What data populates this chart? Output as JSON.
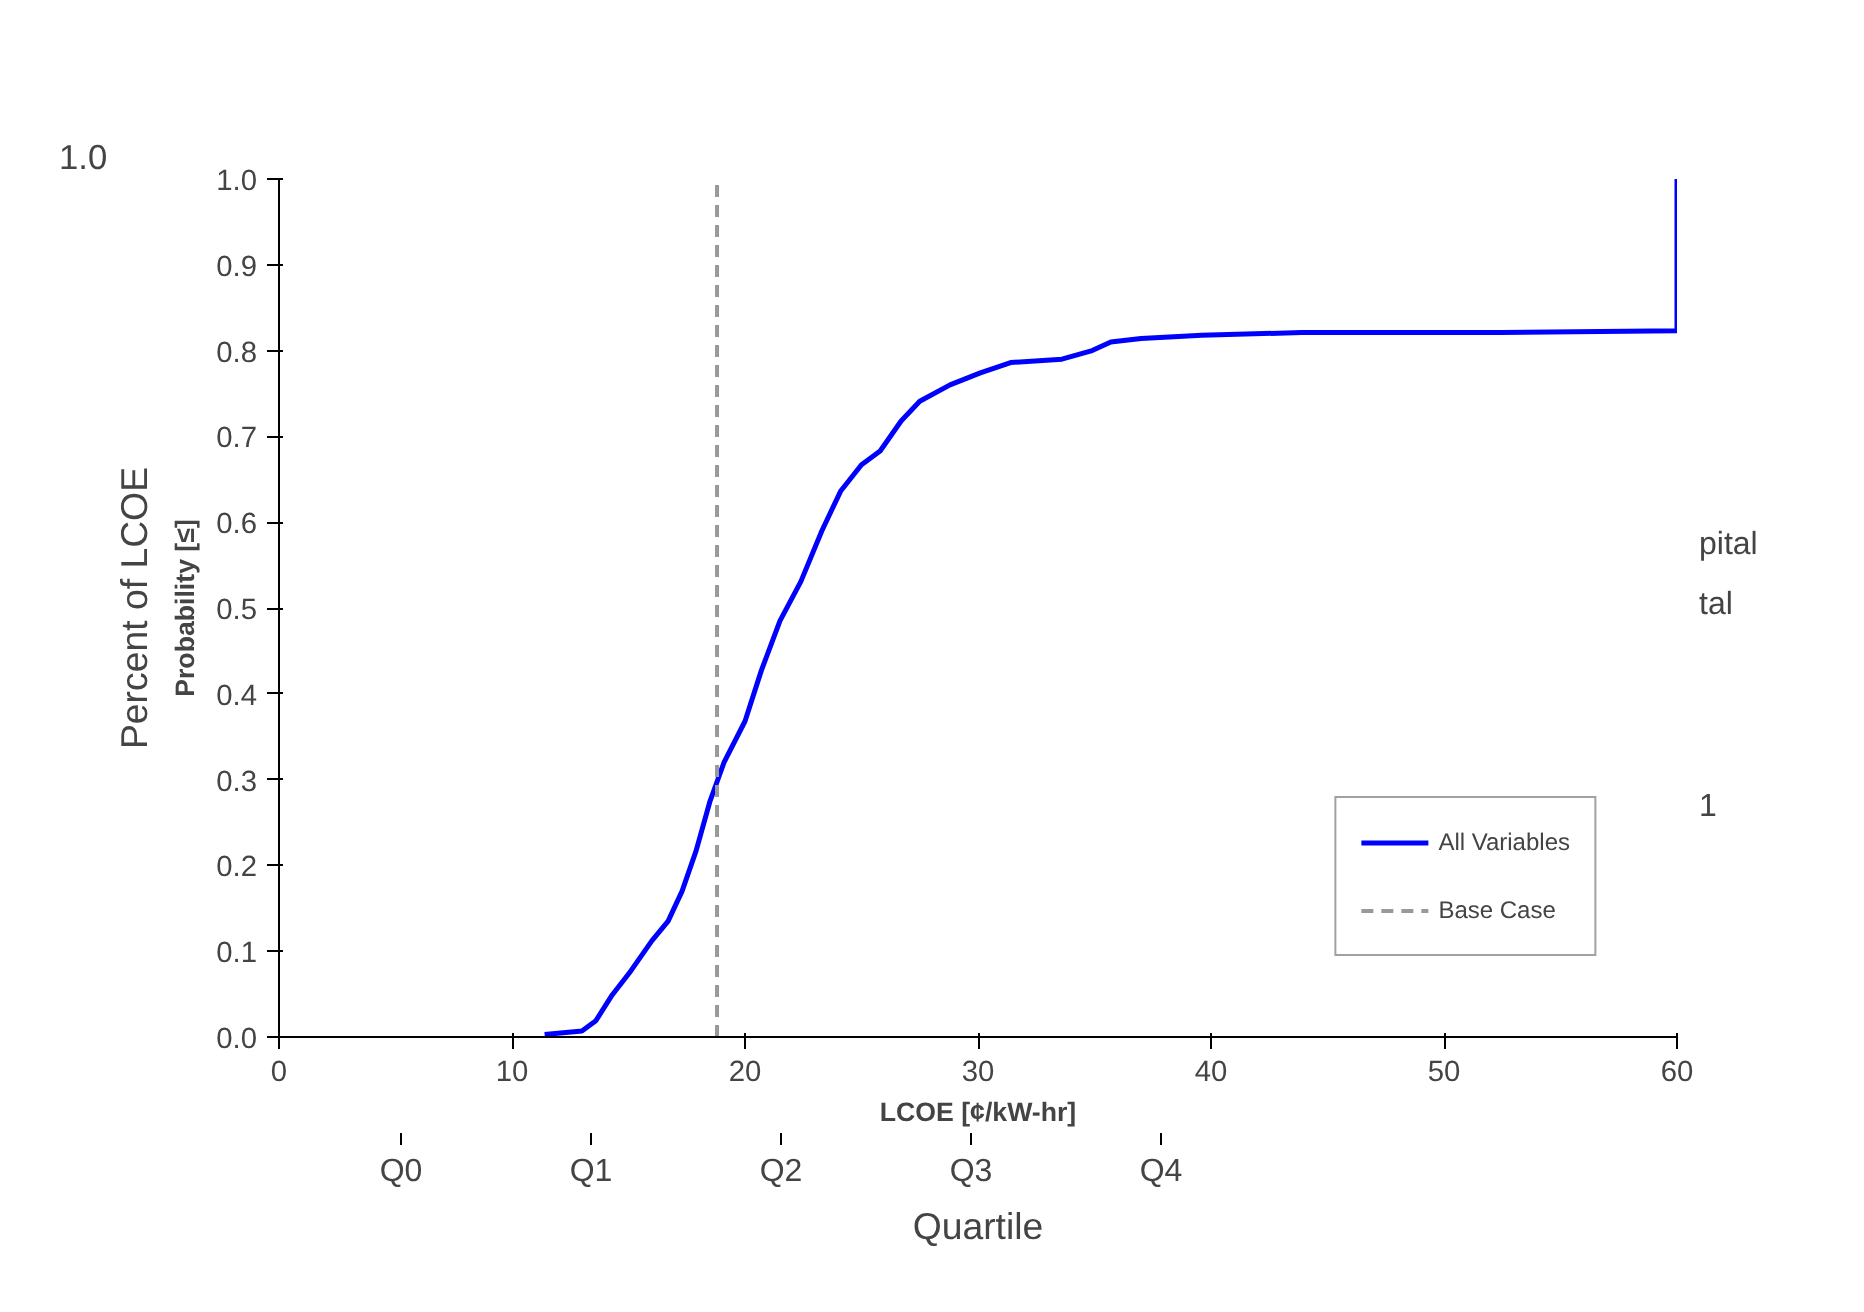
{
  "chart_data": {
    "type": "line",
    "xlabel": "LCOE [¢/kW-hr]",
    "ylabel": "Probability [≤]",
    "xlim": [
      0,
      60
    ],
    "xticks": [
      0,
      10,
      20,
      30,
      40,
      50,
      60
    ],
    "ylim": [
      0,
      1
    ],
    "yticks": [
      {
        "value": 0,
        "label": "0.0"
      },
      {
        "value": 0.1,
        "label": "0.1"
      },
      {
        "value": 0.2,
        "label": "0.2"
      },
      {
        "value": 0.3,
        "label": "0.3"
      },
      {
        "value": 0.4,
        "label": "0.4"
      },
      {
        "value": 0.5,
        "label": "0.5"
      },
      {
        "value": 0.6,
        "label": "0.6"
      },
      {
        "value": 0.7,
        "label": "0.7"
      },
      {
        "value": 0.8,
        "label": "0.8"
      },
      {
        "value": 0.9,
        "label": "0.9"
      },
      {
        "value": 1,
        "label": "1.0"
      }
    ],
    "series": [
      {
        "name": "All Variables",
        "color": "#0000ff",
        "x": [
          11.4,
          13.0,
          13.6,
          14.3,
          15.1,
          16.0,
          16.7,
          17.3,
          17.9,
          18.5,
          19.1,
          20.0,
          20.7,
          21.5,
          22.4,
          23.3,
          24.1,
          25.0,
          25.8,
          26.7,
          27.5,
          28.8,
          30.1,
          31.4,
          33.6,
          34.9,
          35.7,
          37.0,
          39.6,
          43.9,
          52.4,
          60,
          60
        ],
        "values": [
          0.003,
          0.007,
          0.019,
          0.049,
          0.077,
          0.112,
          0.135,
          0.17,
          0.217,
          0.275,
          0.32,
          0.368,
          0.427,
          0.485,
          0.531,
          0.59,
          0.636,
          0.667,
          0.683,
          0.718,
          0.741,
          0.76,
          0.774,
          0.786,
          0.79,
          0.8,
          0.81,
          0.814,
          0.818,
          0.821,
          0.821,
          0.823,
          1.0
        ]
      },
      {
        "name": "Base Case",
        "color": "#999999",
        "line_style": "dashed",
        "x": [
          18.8,
          18.8
        ],
        "values": [
          0,
          1
        ]
      }
    ],
    "legend": "bottom right",
    "grid": false,
    "marker": "none",
    "line_style": "solid",
    "annotations": [
      "1.0",
      "Percent of LCOE",
      "Q0",
      "Q1",
      "Q2",
      "Q3",
      "Q4",
      "Quartile",
      "pital",
      "tal",
      "1"
    ]
  }
}
